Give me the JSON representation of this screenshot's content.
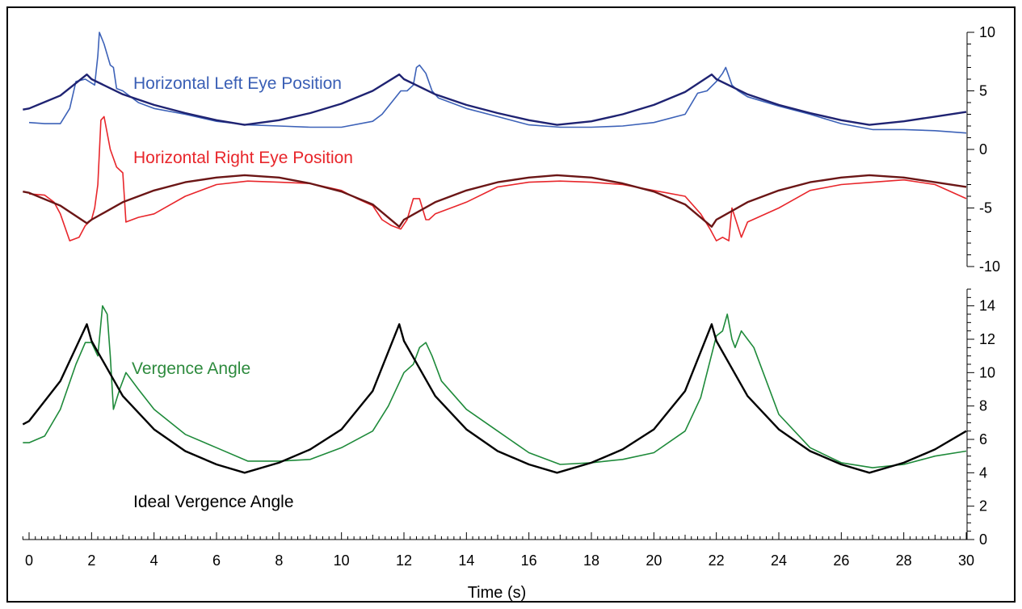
{
  "chart_data": [
    {
      "type": "line",
      "title": "",
      "xlabel": "Time (s)",
      "ylabel": "",
      "xlim": [
        -0.2,
        30
      ],
      "ylim": [
        -10,
        10
      ],
      "yticks": [
        10,
        5,
        0,
        -5,
        -10
      ],
      "grid": false,
      "annotations": [
        {
          "text": "Horizontal Left Eye Position",
          "color": "#3a5fb5"
        },
        {
          "text": "Horizontal Right Eye Position",
          "color": "#e8262b"
        }
      ],
      "series": [
        {
          "name": "Horizontal Left Eye Position",
          "color": "#3d62b8",
          "x": [
            0,
            0.5,
            1,
            1.3,
            1.5,
            1.8,
            2.1,
            2.2,
            2.25,
            2.4,
            2.6,
            2.7,
            2.8,
            3.0,
            3.5,
            4,
            5,
            6,
            7,
            8,
            9,
            10,
            11,
            11.3,
            11.6,
            11.9,
            12.1,
            12.3,
            12.4,
            12.5,
            12.7,
            12.9,
            13.1,
            14,
            15,
            16,
            17,
            18,
            19,
            20,
            21,
            21.4,
            21.7,
            22.0,
            22.2,
            22.3,
            22.5,
            22.7,
            23,
            24,
            25,
            26,
            27,
            28,
            29,
            30
          ],
          "values": [
            2.3,
            2.2,
            2.2,
            3.5,
            5.8,
            6.0,
            5.5,
            8.0,
            10.0,
            9.0,
            7.2,
            7.0,
            5.2,
            5.0,
            4.0,
            3.5,
            3.0,
            2.4,
            2.1,
            2.0,
            1.9,
            1.9,
            2.4,
            3.0,
            4.0,
            5.0,
            5.0,
            5.5,
            7.0,
            7.2,
            6.5,
            5.0,
            4.4,
            3.5,
            2.8,
            2.1,
            1.9,
            1.9,
            2.0,
            2.3,
            3.0,
            4.8,
            5.0,
            5.8,
            6.5,
            7.0,
            5.5,
            5.0,
            4.5,
            3.7,
            3.0,
            2.2,
            1.7,
            1.7,
            1.6,
            1.4
          ]
        },
        {
          "name": "Horizontal Left Eye Position (ideal)",
          "color": "#1f2372",
          "x": [
            -0.2,
            0,
            1,
            1.85,
            2,
            3,
            4,
            5,
            6,
            6.9,
            8,
            9,
            10,
            11,
            11.85,
            12,
            13,
            14,
            15,
            16,
            16.9,
            18,
            19,
            20,
            21,
            21.85,
            22,
            23,
            24,
            25,
            26,
            26.9,
            28,
            29,
            30
          ],
          "values": [
            3.4,
            3.5,
            4.6,
            6.4,
            6.0,
            4.7,
            3.8,
            3.1,
            2.5,
            2.1,
            2.5,
            3.1,
            3.9,
            5.0,
            6.4,
            6.0,
            4.7,
            3.8,
            3.1,
            2.5,
            2.1,
            2.4,
            3.0,
            3.8,
            4.9,
            6.4,
            6.0,
            4.7,
            3.8,
            3.1,
            2.5,
            2.1,
            2.4,
            2.8,
            3.2
          ]
        },
        {
          "name": "Horizontal Right Eye Position",
          "color": "#e8262b",
          "x": [
            0,
            0.5,
            0.8,
            1.0,
            1.3,
            1.6,
            1.8,
            2.0,
            2.1,
            2.2,
            2.3,
            2.4,
            2.6,
            2.8,
            3.0,
            3.1,
            3.5,
            4,
            5,
            6,
            7,
            8,
            9,
            10,
            10.5,
            11,
            11.3,
            11.6,
            11.9,
            12.1,
            12.3,
            12.5,
            12.7,
            12.8,
            13,
            14,
            15,
            16,
            17,
            18,
            19,
            20,
            21,
            21.5,
            21.8,
            22.0,
            22.2,
            22.4,
            22.5,
            22.8,
            23,
            24,
            25,
            26,
            27,
            28,
            29,
            30
          ],
          "values": [
            -3.8,
            -3.9,
            -4.5,
            -5.5,
            -7.8,
            -7.5,
            -6.5,
            -6.0,
            -5.0,
            -3.0,
            2.5,
            2.8,
            0,
            -1.5,
            -2.0,
            -6.2,
            -5.8,
            -5.5,
            -4.0,
            -3.0,
            -2.7,
            -2.8,
            -2.9,
            -3.5,
            -4.2,
            -4.8,
            -6.0,
            -6.5,
            -6.8,
            -6.0,
            -4.2,
            -4.2,
            -6.0,
            -6.0,
            -5.5,
            -4.5,
            -3.2,
            -2.8,
            -2.7,
            -2.8,
            -3.0,
            -3.5,
            -4.0,
            -5.5,
            -6.8,
            -7.8,
            -7.5,
            -7.8,
            -5.0,
            -7.5,
            -6.2,
            -5.0,
            -3.5,
            -3.0,
            -2.8,
            -2.6,
            -3.0,
            -4.2
          ]
        },
        {
          "name": "Horizontal Right Eye Position (ideal)",
          "color": "#6b1616",
          "x": [
            -0.2,
            0,
            1,
            1.85,
            2,
            3,
            4,
            5,
            6,
            6.9,
            8,
            9,
            10,
            11,
            11.85,
            12,
            13,
            14,
            15,
            16,
            16.9,
            18,
            19,
            20,
            21,
            21.85,
            22,
            23,
            24,
            25,
            26,
            26.9,
            28,
            29,
            30
          ],
          "values": [
            -3.6,
            -3.7,
            -4.8,
            -6.3,
            -6.0,
            -4.5,
            -3.5,
            -2.8,
            -2.4,
            -2.2,
            -2.4,
            -2.9,
            -3.6,
            -4.7,
            -6.6,
            -6.0,
            -4.5,
            -3.5,
            -2.8,
            -2.4,
            -2.2,
            -2.4,
            -2.9,
            -3.6,
            -4.7,
            -6.6,
            -6.0,
            -4.5,
            -3.5,
            -2.8,
            -2.4,
            -2.2,
            -2.4,
            -2.8,
            -3.2
          ]
        }
      ]
    },
    {
      "type": "line",
      "title": "",
      "xlabel": "Time (s)",
      "ylabel": "",
      "xlim": [
        -0.2,
        30
      ],
      "ylim": [
        0,
        15
      ],
      "yticks": [
        0,
        2,
        4,
        6,
        8,
        10,
        12,
        14
      ],
      "xticks": [
        0,
        2,
        4,
        6,
        8,
        10,
        12,
        14,
        16,
        18,
        20,
        22,
        24,
        26,
        28,
        30
      ],
      "grid": false,
      "annotations": [
        {
          "text": "Vergence Angle",
          "color": "#2e8b3e"
        },
        {
          "text": "Ideal Vergence Angle",
          "color": "#000000"
        }
      ],
      "series": [
        {
          "name": "Vergence Angle",
          "color": "#1e8a3a",
          "x": [
            -0.2,
            0,
            0.5,
            1.0,
            1.5,
            1.8,
            2.0,
            2.2,
            2.35,
            2.5,
            2.6,
            2.7,
            2.9,
            3.1,
            3.5,
            4,
            5,
            6,
            7,
            8,
            9,
            10,
            11,
            11.5,
            12.0,
            12.3,
            12.5,
            12.7,
            12.9,
            13.2,
            14,
            15,
            16,
            17,
            18,
            19,
            20,
            21,
            21.5,
            22.0,
            22.2,
            22.35,
            22.5,
            22.6,
            22.8,
            23.0,
            23.2,
            24,
            25,
            26,
            27,
            28,
            29,
            30
          ],
          "values": [
            5.8,
            5.8,
            6.2,
            7.8,
            10.5,
            11.8,
            11.8,
            11.0,
            14.0,
            13.5,
            11.0,
            7.8,
            9.0,
            10.0,
            9.0,
            7.8,
            6.3,
            5.5,
            4.7,
            4.7,
            4.8,
            5.5,
            6.5,
            8.0,
            10.0,
            10.5,
            11.5,
            11.8,
            11.0,
            9.5,
            7.8,
            6.5,
            5.2,
            4.5,
            4.6,
            4.8,
            5.2,
            6.5,
            8.5,
            12.2,
            12.5,
            13.5,
            12.0,
            11.5,
            12.5,
            12.0,
            11.5,
            7.5,
            5.5,
            4.6,
            4.3,
            4.5,
            5.0,
            5.3
          ]
        },
        {
          "name": "Ideal Vergence Angle",
          "color": "#000000",
          "x": [
            -0.2,
            0,
            1,
            1.85,
            2,
            3,
            4,
            5,
            6,
            6.9,
            8,
            9,
            10,
            11,
            11.85,
            12,
            13,
            14,
            15,
            16,
            16.9,
            18,
            19,
            20,
            21,
            21.85,
            22,
            23,
            24,
            25,
            26,
            26.9,
            28,
            29,
            30
          ],
          "values": [
            6.9,
            7.1,
            9.5,
            12.9,
            11.9,
            8.6,
            6.6,
            5.3,
            4.5,
            4.0,
            4.6,
            5.4,
            6.6,
            8.9,
            12.9,
            11.9,
            8.6,
            6.6,
            5.3,
            4.5,
            4.0,
            4.6,
            5.4,
            6.6,
            8.9,
            12.9,
            11.9,
            8.6,
            6.6,
            5.3,
            4.5,
            4.0,
            4.6,
            5.4,
            6.5
          ]
        }
      ]
    }
  ]
}
